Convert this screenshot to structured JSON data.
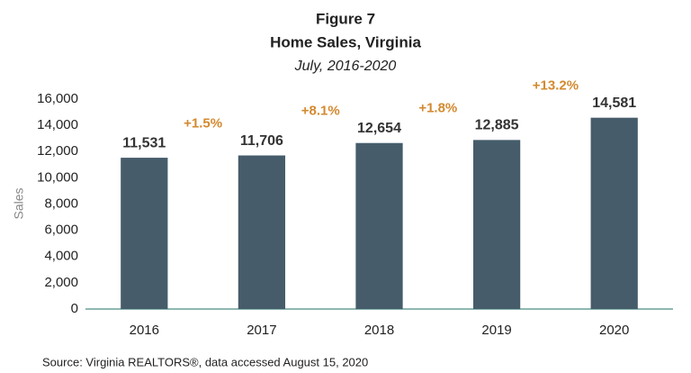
{
  "chart_data": {
    "type": "bar",
    "title": "Figure 7",
    "subtitle": "Home Sales, Virginia",
    "period": "July, 2016-2020",
    "y_label": "Sales",
    "categories": [
      "2016",
      "2017",
      "2018",
      "2019",
      "2020"
    ],
    "values": [
      11531,
      11706,
      12654,
      12885,
      14581
    ],
    "value_labels": [
      "11,531",
      "11,706",
      "12,654",
      "12,885",
      "14,581"
    ],
    "annotations": [
      "+1.5%",
      "+8.1%",
      "+1.8%",
      "+13.2%"
    ],
    "annotation_color": "#d4892f",
    "color": "#465c6b",
    "ylim": [
      0,
      16000
    ],
    "yticks": [
      0,
      {
        "value": 2000,
        "label": "2,000"
      },
      {
        "value": 4000,
        "label": "4,000"
      },
      {
        "value": 6000,
        "label": "6,000"
      },
      {
        "value": 8000,
        "label": "8,000"
      },
      {
        "value": 10000,
        "label": "10,000"
      },
      {
        "value": 12000,
        "label": "12,000"
      },
      {
        "value": 14000,
        "label": "14,000"
      },
      {
        "value": 16000,
        "label": "16,000"
      }
    ],
    "grid": false,
    "source": "Source: Virginia REALTORS®, data accessed August 15, 2020"
  }
}
